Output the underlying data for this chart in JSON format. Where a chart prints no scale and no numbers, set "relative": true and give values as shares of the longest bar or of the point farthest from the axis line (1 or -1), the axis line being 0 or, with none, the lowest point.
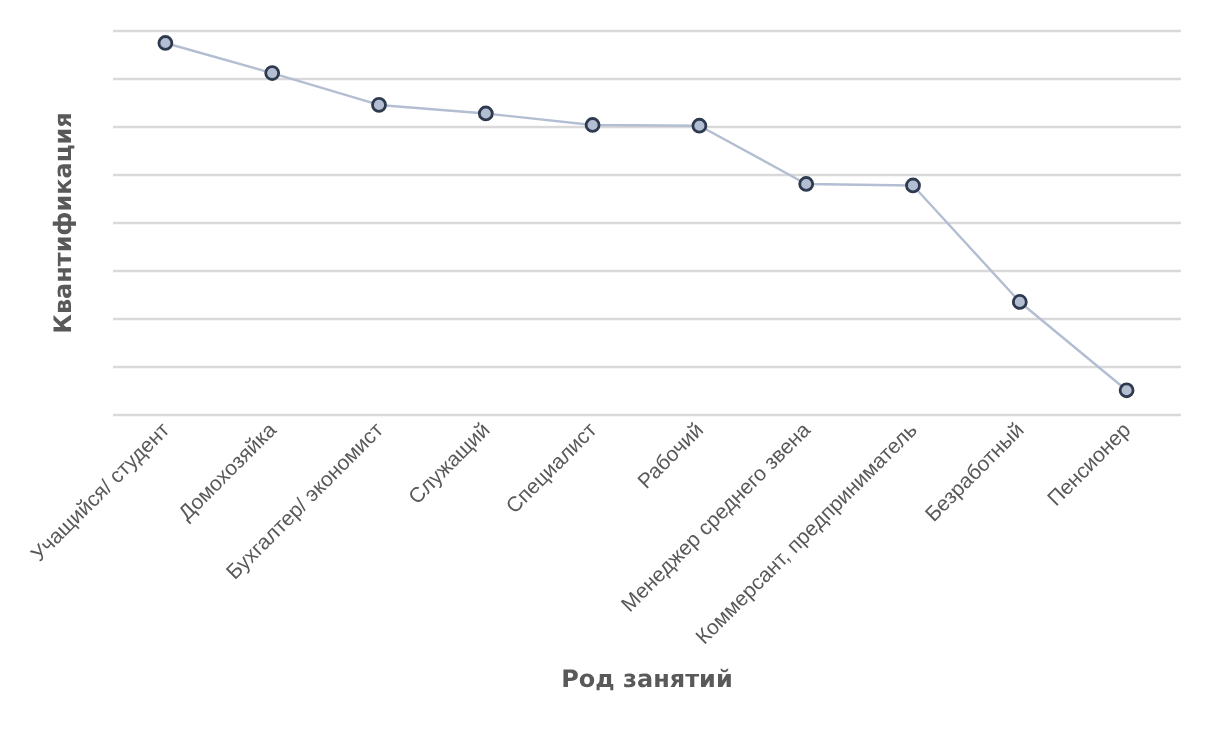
{
  "chart_data": {
    "type": "line",
    "relative": true,
    "xlabel": "Род занятий",
    "ylabel": "Квантификация",
    "categories": [
      "Учащийся/ студент",
      "Домохозяйка",
      "Бухгалтер/ экономист",
      "Служащий",
      "Специалист",
      "Рабочий",
      "Менеджер среднего звена",
      "Коммерсант, предприниматель",
      "Безработный",
      "Пенсионер"
    ],
    "series": [
      {
        "color": "#b4bed2",
        "values": [
          1,
          0.919,
          0.833,
          0.81,
          0.779,
          0.777,
          0.62,
          0.616,
          0.302,
          0.064
        ]
      }
    ],
    "grid": "y",
    "marker": "circle",
    "line_style": "solid",
    "tick_labels": "x"
  }
}
